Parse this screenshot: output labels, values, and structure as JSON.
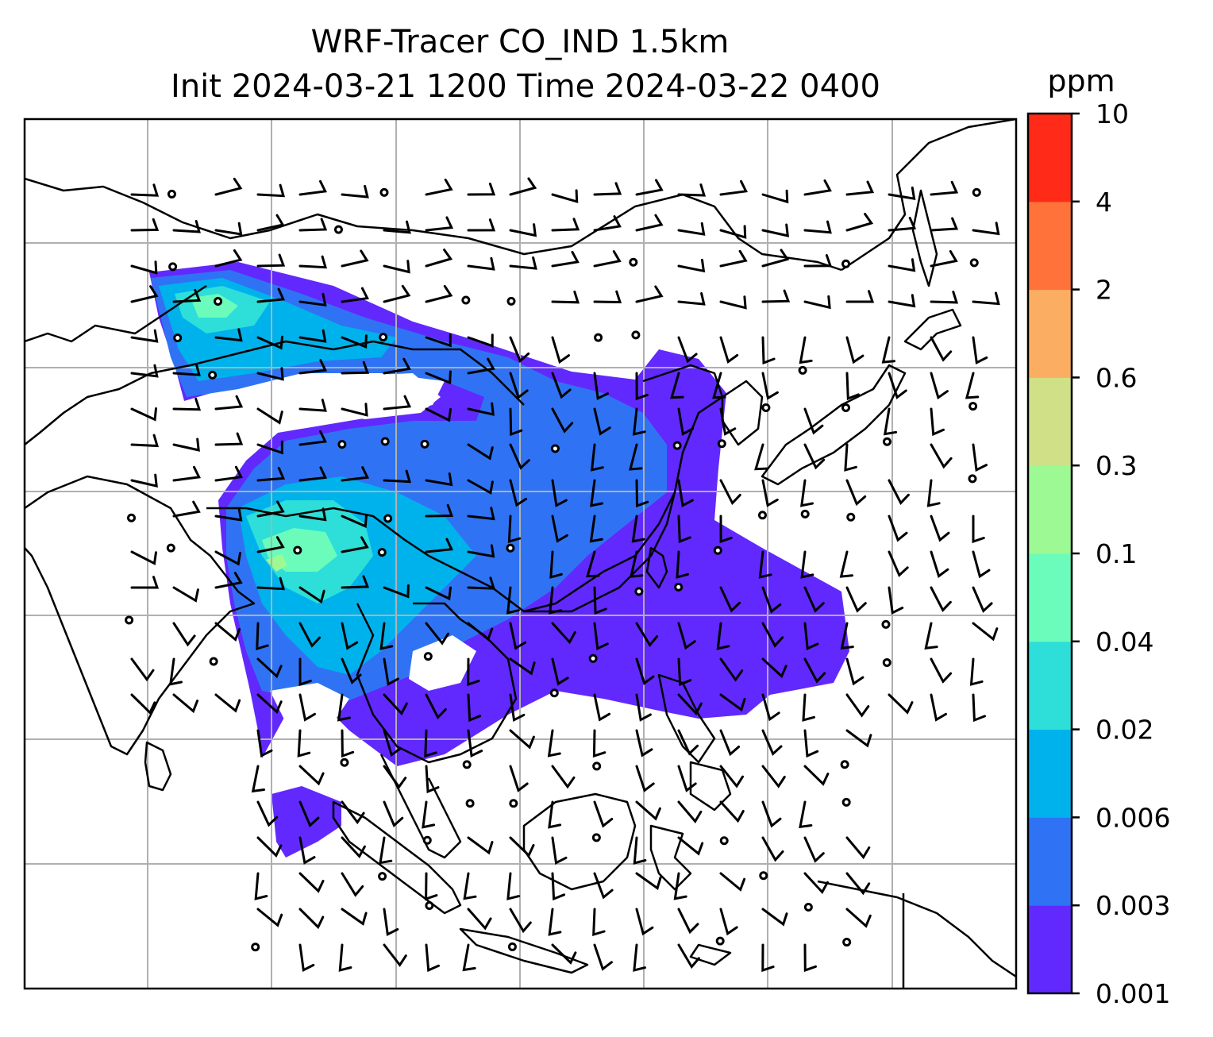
{
  "figure": {
    "title_line1": "WRF-Tracer CO_IND 1.5km",
    "title_line2": "Init 2024-03-21 1200 Time 2024-03-22 0400"
  },
  "colorbar": {
    "unit": "ppm",
    "levels": [
      "0.001",
      "0.003",
      "0.006",
      "0.02",
      "0.04",
      "0.1",
      "0.3",
      "0.6",
      "2",
      "4",
      "10"
    ],
    "colors": [
      "#6129fd",
      "#2f73f4",
      "#00b2ec",
      "#2ddfd8",
      "#6bfcbb",
      "#9cf994",
      "#cfe086",
      "#fbae61",
      "#ff7239",
      "#ff2a17"
    ]
  },
  "map": {
    "field": "CO_IND",
    "coastline_color": "#000000",
    "gridline_color": "#b0b0b0",
    "barb_color": "#000000"
  }
}
